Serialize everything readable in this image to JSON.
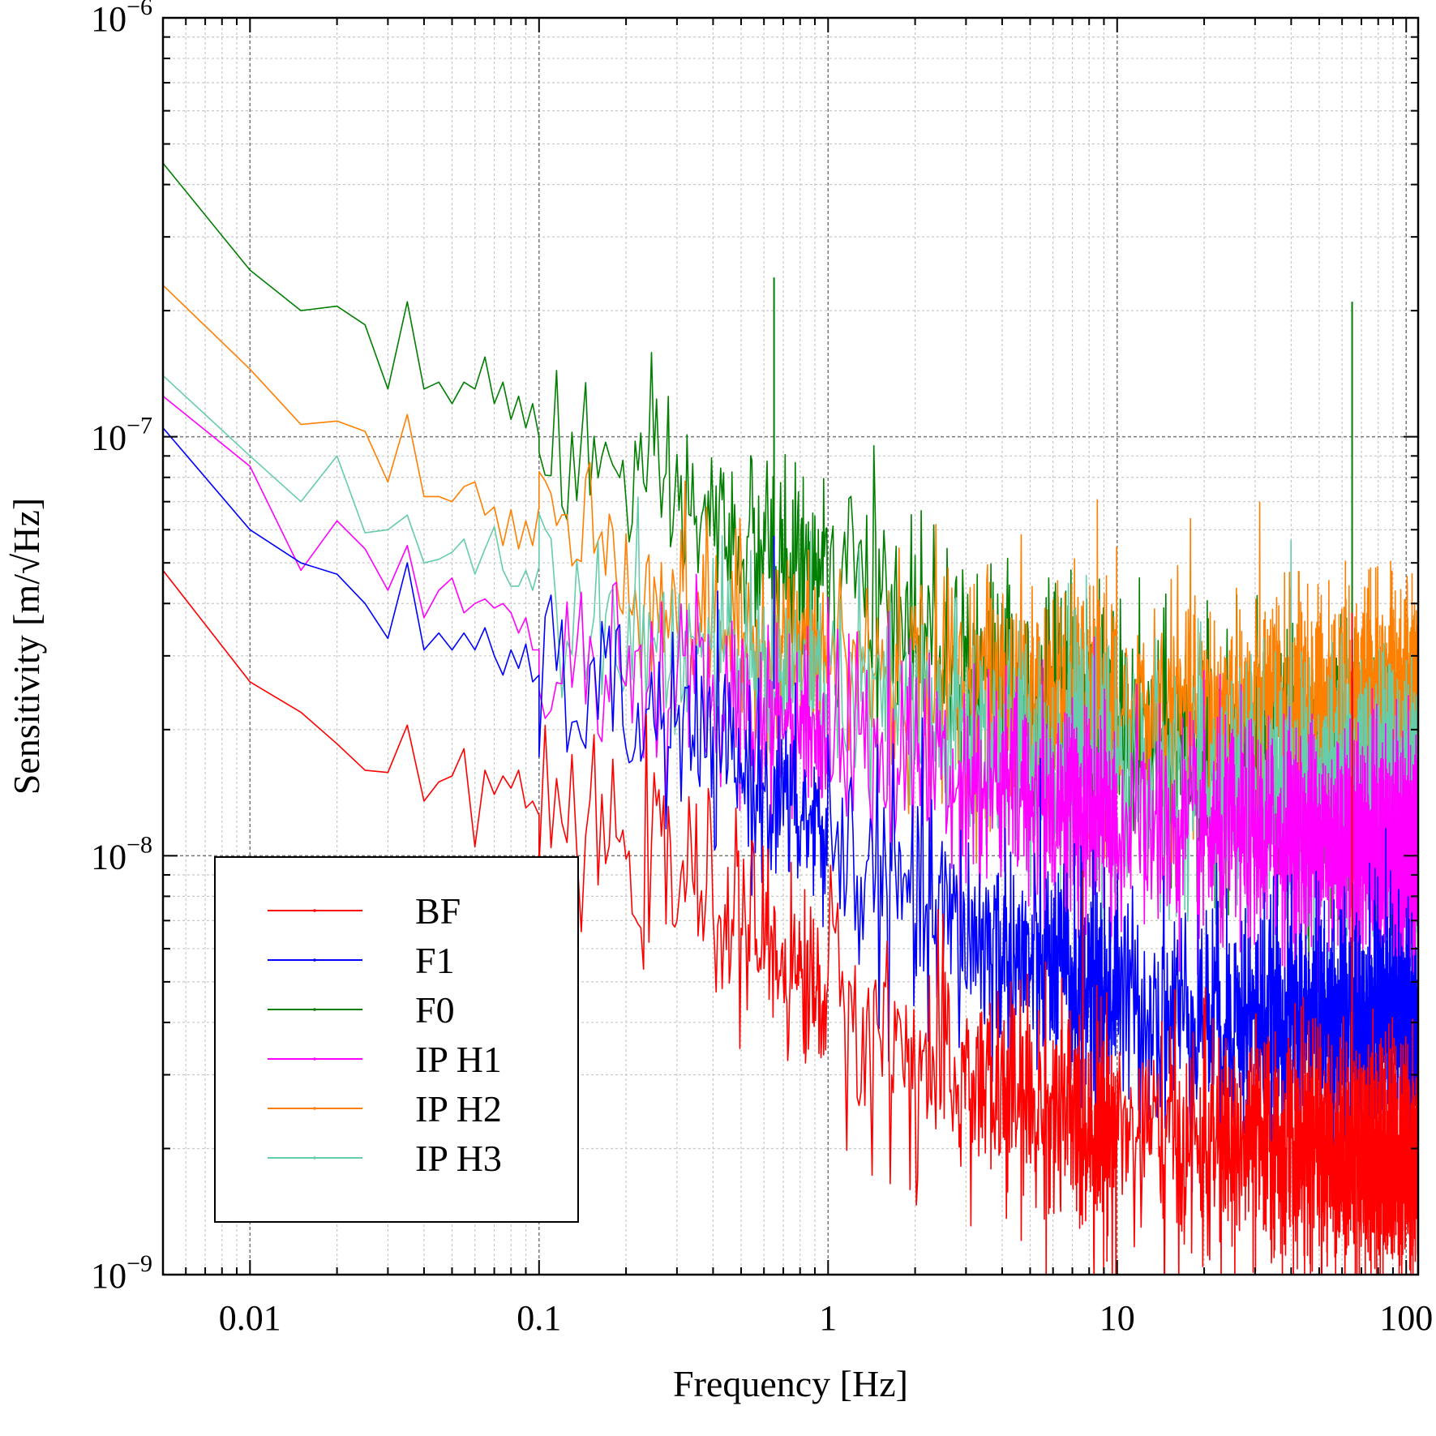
{
  "chart_data": {
    "type": "line",
    "xlabel": "Frequency [Hz]",
    "ylabel": "Sensitivity [m/√Hz]",
    "x_scale": "log",
    "y_scale": "log",
    "xlim": [
      0.005,
      110
    ],
    "ylim": [
      1e-09,
      1e-06
    ],
    "grid": true,
    "legend_position": "lower-left",
    "x_ticks": [
      {
        "value": 0.01,
        "label": "0.01"
      },
      {
        "value": 0.1,
        "label": "0.1"
      },
      {
        "value": 1,
        "label": "1"
      },
      {
        "value": 10,
        "label": "10"
      },
      {
        "value": 100,
        "label": "100"
      }
    ],
    "y_ticks": [
      {
        "value": 1e-09,
        "base": "10",
        "exp": "−9"
      },
      {
        "value": 1e-08,
        "base": "10",
        "exp": "−8"
      },
      {
        "value": 1e-07,
        "base": "10",
        "exp": "−7"
      },
      {
        "value": 1e-06,
        "base": "10",
        "exp": "−6"
      }
    ],
    "series": [
      {
        "name": "BF",
        "color": "#ff0000",
        "x": [
          0.005,
          0.01,
          0.015,
          0.02,
          0.025,
          0.03,
          0.035,
          0.04,
          0.045,
          0.05,
          0.055,
          0.06,
          0.065,
          0.07,
          0.075,
          0.08,
          0.085,
          0.09,
          0.095,
          0.1,
          0.3,
          0.5,
          1,
          2,
          5,
          10,
          20,
          50,
          100
        ],
        "y": [
          4.8e-08,
          2.6e-08,
          2.2e-08,
          1.85e-08,
          1.6e-08,
          1.58e-08,
          2.05e-08,
          1.35e-08,
          1.5e-08,
          1.55e-08,
          1.8e-08,
          1.05e-08,
          1.6e-08,
          1.4e-08,
          1.55e-08,
          1.45e-08,
          1.6e-08,
          1.3e-08,
          1.35e-08,
          1.25e-08,
          9e-09,
          7e-09,
          4.5e-09,
          3.2e-09,
          2.5e-09,
          2.2e-09,
          2e-09,
          2e-09,
          1.9e-09
        ]
      },
      {
        "name": "F1",
        "color": "#0000ff",
        "x": [
          0.005,
          0.01,
          0.015,
          0.02,
          0.025,
          0.03,
          0.035,
          0.04,
          0.045,
          0.05,
          0.055,
          0.06,
          0.065,
          0.07,
          0.075,
          0.08,
          0.085,
          0.09,
          0.095,
          0.1,
          0.3,
          0.5,
          1,
          2,
          5,
          10,
          20,
          50,
          100
        ],
        "y": [
          1.05e-07,
          6e-08,
          5e-08,
          4.7e-08,
          4e-08,
          3.3e-08,
          5e-08,
          3.1e-08,
          3.4e-08,
          3.1e-08,
          3.4e-08,
          3.1e-08,
          3.5e-08,
          3e-08,
          2.7e-08,
          3.1e-08,
          2.8e-08,
          3.2e-08,
          2.6e-08,
          2.7e-08,
          2e-08,
          1.6e-08,
          1.1e-08,
          7.5e-09,
          5.5e-09,
          4.5e-09,
          4.2e-09,
          4e-09,
          4e-09
        ]
      },
      {
        "name": "F0",
        "color": "#007f00",
        "x": [
          0.005,
          0.01,
          0.015,
          0.02,
          0.025,
          0.03,
          0.035,
          0.04,
          0.045,
          0.05,
          0.055,
          0.06,
          0.065,
          0.07,
          0.075,
          0.08,
          0.085,
          0.09,
          0.095,
          0.1,
          0.3,
          0.5,
          1,
          2,
          5,
          10,
          20,
          50,
          100
        ],
        "y": [
          4.5e-07,
          2.5e-07,
          2e-07,
          2.05e-07,
          1.85e-07,
          1.3e-07,
          2.1e-07,
          1.3e-07,
          1.35e-07,
          1.2e-07,
          1.35e-07,
          1.3e-07,
          1.55e-07,
          1.2e-07,
          1.35e-07,
          1.1e-07,
          1.25e-07,
          1.05e-07,
          1.2e-07,
          1e-07,
          7e-08,
          5.5e-08,
          4.6e-08,
          3.6e-08,
          2.5e-08,
          2e-08,
          1.7e-08,
          1.5e-08,
          1.5e-08
        ]
      },
      {
        "name": "IP H1",
        "color": "#ff00ff",
        "x": [
          0.005,
          0.01,
          0.015,
          0.02,
          0.025,
          0.03,
          0.035,
          0.04,
          0.045,
          0.05,
          0.055,
          0.06,
          0.065,
          0.07,
          0.075,
          0.08,
          0.085,
          0.09,
          0.095,
          0.1,
          0.3,
          0.5,
          1,
          2,
          5,
          10,
          20,
          50,
          100
        ],
        "y": [
          1.25e-07,
          8.5e-08,
          4.8e-08,
          6.3e-08,
          5.4e-08,
          4.3e-08,
          5.5e-08,
          3.7e-08,
          4.3e-08,
          4.6e-08,
          3.8e-08,
          4e-08,
          4.1e-08,
          3.9e-08,
          4e-08,
          3.8e-08,
          3.4e-08,
          3.7e-08,
          3.1e-08,
          3.1e-08,
          2.6e-08,
          2.3e-08,
          2e-08,
          1.7e-08,
          1.4e-08,
          1.2e-08,
          1.1e-08,
          1.1e-08,
          1e-08
        ]
      },
      {
        "name": "IP H2",
        "color": "#ff7f00",
        "x": [
          0.005,
          0.01,
          0.015,
          0.02,
          0.025,
          0.03,
          0.035,
          0.04,
          0.045,
          0.05,
          0.055,
          0.06,
          0.065,
          0.07,
          0.075,
          0.08,
          0.085,
          0.09,
          0.095,
          0.1,
          0.3,
          0.5,
          1,
          2,
          5,
          10,
          20,
          50,
          100
        ],
        "y": [
          2.3e-07,
          1.45e-07,
          1.07e-07,
          1.09e-07,
          1.03e-07,
          7.8e-08,
          1.13e-07,
          7.2e-08,
          7.2e-08,
          7e-08,
          7.6e-08,
          7.8e-08,
          6.5e-08,
          6.8e-08,
          5.5e-08,
          6.7e-08,
          5.4e-08,
          6.3e-08,
          5.5e-08,
          6.8e-08,
          4e-08,
          3.4e-08,
          3e-08,
          2.7e-08,
          2.4e-08,
          2.2e-08,
          2.2e-08,
          2.2e-08,
          2.2e-08
        ]
      },
      {
        "name": "IP H3",
        "color": "#66ccaa",
        "x": [
          0.005,
          0.01,
          0.015,
          0.02,
          0.025,
          0.03,
          0.035,
          0.04,
          0.045,
          0.05,
          0.055,
          0.06,
          0.065,
          0.07,
          0.075,
          0.08,
          0.085,
          0.09,
          0.095,
          0.1,
          0.3,
          0.5,
          1,
          2,
          5,
          10,
          20,
          50,
          100
        ],
        "y": [
          1.4e-07,
          9e-08,
          7e-08,
          9e-08,
          5.9e-08,
          6e-08,
          6.5e-08,
          5e-08,
          5.1e-08,
          5.3e-08,
          5.7e-08,
          4.7e-08,
          5.4e-08,
          6.1e-08,
          4.8e-08,
          4.4e-08,
          4.4e-08,
          4.8e-08,
          4.3e-08,
          4.9e-08,
          3.2e-08,
          2.9e-08,
          2.5e-08,
          2.1e-08,
          1.8e-08,
          1.6e-08,
          1.5e-08,
          1.4e-08,
          1.4e-08
        ]
      }
    ]
  }
}
